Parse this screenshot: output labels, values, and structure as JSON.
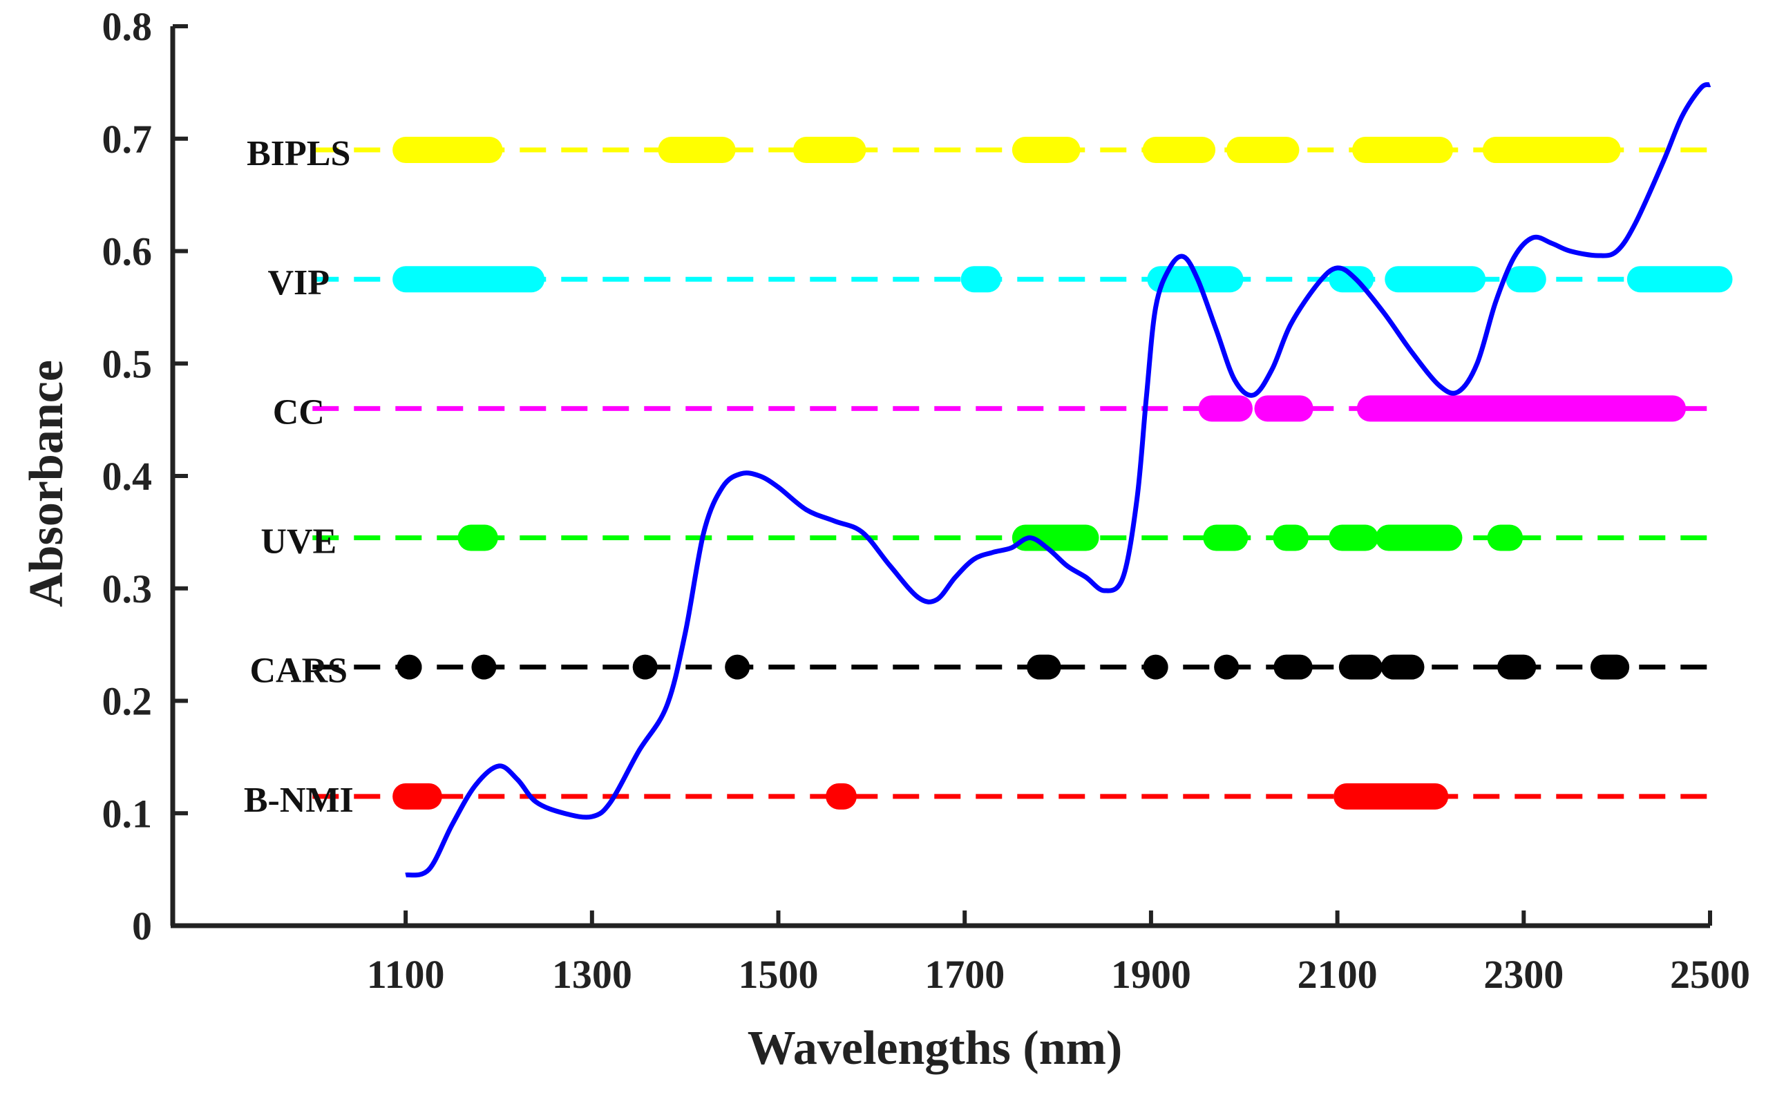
{
  "chart_data": {
    "type": "line",
    "xlabel": "Wavelengths (nm)",
    "ylabel": "Absorbance",
    "xlim": [
      850,
      2500
    ],
    "ylim": [
      0,
      0.8
    ],
    "xticks": [
      1100,
      1300,
      1500,
      1700,
      1900,
      2100,
      2300,
      2500
    ],
    "yticks": [
      0,
      0.1,
      0.2,
      0.3,
      0.4,
      0.5,
      0.6,
      0.7,
      0.8
    ],
    "xtick_labels": [
      "1100",
      "1300",
      "1500",
      "1700",
      "1900",
      "2100",
      "2300",
      "2500"
    ],
    "ytick_labels": [
      "0",
      "0.1",
      "0.2",
      "0.3",
      "0.4",
      "0.5",
      "0.6",
      "0.7",
      "0.8"
    ],
    "spectrum": {
      "name": "Absorbance spectrum",
      "color": "#0000ff",
      "points": [
        [
          1100,
          0.045
        ],
        [
          1125,
          0.05
        ],
        [
          1150,
          0.09
        ],
        [
          1175,
          0.125
        ],
        [
          1200,
          0.142
        ],
        [
          1220,
          0.13
        ],
        [
          1240,
          0.11
        ],
        [
          1270,
          0.1
        ],
        [
          1300,
          0.097
        ],
        [
          1320,
          0.11
        ],
        [
          1350,
          0.155
        ],
        [
          1380,
          0.195
        ],
        [
          1400,
          0.26
        ],
        [
          1420,
          0.35
        ],
        [
          1440,
          0.39
        ],
        [
          1460,
          0.402
        ],
        [
          1480,
          0.4
        ],
        [
          1500,
          0.39
        ],
        [
          1530,
          0.37
        ],
        [
          1560,
          0.36
        ],
        [
          1590,
          0.35
        ],
        [
          1620,
          0.32
        ],
        [
          1650,
          0.292
        ],
        [
          1670,
          0.29
        ],
        [
          1690,
          0.31
        ],
        [
          1710,
          0.326
        ],
        [
          1730,
          0.332
        ],
        [
          1750,
          0.336
        ],
        [
          1770,
          0.345
        ],
        [
          1790,
          0.335
        ],
        [
          1810,
          0.32
        ],
        [
          1830,
          0.31
        ],
        [
          1850,
          0.298
        ],
        [
          1870,
          0.31
        ],
        [
          1885,
          0.38
        ],
        [
          1895,
          0.47
        ],
        [
          1905,
          0.55
        ],
        [
          1920,
          0.585
        ],
        [
          1935,
          0.595
        ],
        [
          1950,
          0.575
        ],
        [
          1970,
          0.53
        ],
        [
          1990,
          0.485
        ],
        [
          2010,
          0.472
        ],
        [
          2030,
          0.495
        ],
        [
          2050,
          0.535
        ],
        [
          2080,
          0.572
        ],
        [
          2100,
          0.585
        ],
        [
          2120,
          0.575
        ],
        [
          2150,
          0.545
        ],
        [
          2180,
          0.51
        ],
        [
          2210,
          0.48
        ],
        [
          2230,
          0.475
        ],
        [
          2250,
          0.5
        ],
        [
          2270,
          0.555
        ],
        [
          2290,
          0.595
        ],
        [
          2310,
          0.612
        ],
        [
          2330,
          0.607
        ],
        [
          2350,
          0.6
        ],
        [
          2380,
          0.596
        ],
        [
          2400,
          0.6
        ],
        [
          2420,
          0.625
        ],
        [
          2450,
          0.68
        ],
        [
          2470,
          0.72
        ],
        [
          2490,
          0.745
        ],
        [
          2500,
          0.748
        ]
      ]
    },
    "series": [
      {
        "name": "BIPLS",
        "color": "#ffff00",
        "y": 0.69,
        "marker_style": "bar",
        "intervals": [
          [
            1100,
            1190
          ],
          [
            1385,
            1440
          ],
          [
            1530,
            1580
          ],
          [
            1765,
            1810
          ],
          [
            1905,
            1955
          ],
          [
            1995,
            2045
          ],
          [
            2130,
            2210
          ],
          [
            2270,
            2390
          ]
        ]
      },
      {
        "name": "VIP",
        "color": "#00ffff",
        "y": 0.575,
        "marker_style": "bar",
        "intervals": [
          [
            1100,
            1235
          ],
          [
            1710,
            1725
          ],
          [
            1910,
            1985
          ],
          [
            2105,
            2125
          ],
          [
            2165,
            2245
          ],
          [
            2295,
            2310
          ],
          [
            2425,
            2510
          ]
        ]
      },
      {
        "name": "CC",
        "color": "#ff00ff",
        "y": 0.46,
        "marker_style": "bar",
        "intervals": [
          [
            1965,
            1995
          ],
          [
            2025,
            2060
          ],
          [
            2135,
            2460
          ]
        ]
      },
      {
        "name": "UVE",
        "color": "#00ff00",
        "y": 0.345,
        "marker_style": "bar",
        "intervals": [
          [
            1170,
            1185
          ],
          [
            1765,
            1830
          ],
          [
            1970,
            1990
          ],
          [
            2045,
            2055
          ],
          [
            2105,
            2130
          ],
          [
            2155,
            2220
          ],
          [
            2275,
            2285
          ]
        ]
      },
      {
        "name": "CARS",
        "color": "#000000",
        "y": 0.23,
        "marker_style": "dot",
        "intervals": [
          [
            1104,
            1104
          ],
          [
            1184,
            1184
          ],
          [
            1357,
            1357
          ],
          [
            1456,
            1456
          ],
          [
            1780,
            1790
          ],
          [
            1905,
            1905
          ],
          [
            1981,
            1981
          ],
          [
            2045,
            2060
          ],
          [
            2115,
            2135
          ],
          [
            2160,
            2180
          ],
          [
            2285,
            2300
          ],
          [
            2385,
            2400
          ]
        ]
      },
      {
        "name": "B-NMI",
        "color": "#ff0000",
        "y": 0.115,
        "marker_style": "bar",
        "intervals": [
          [
            1100,
            1125
          ],
          [
            1565,
            1570
          ],
          [
            2110,
            2205
          ]
        ]
      }
    ]
  }
}
